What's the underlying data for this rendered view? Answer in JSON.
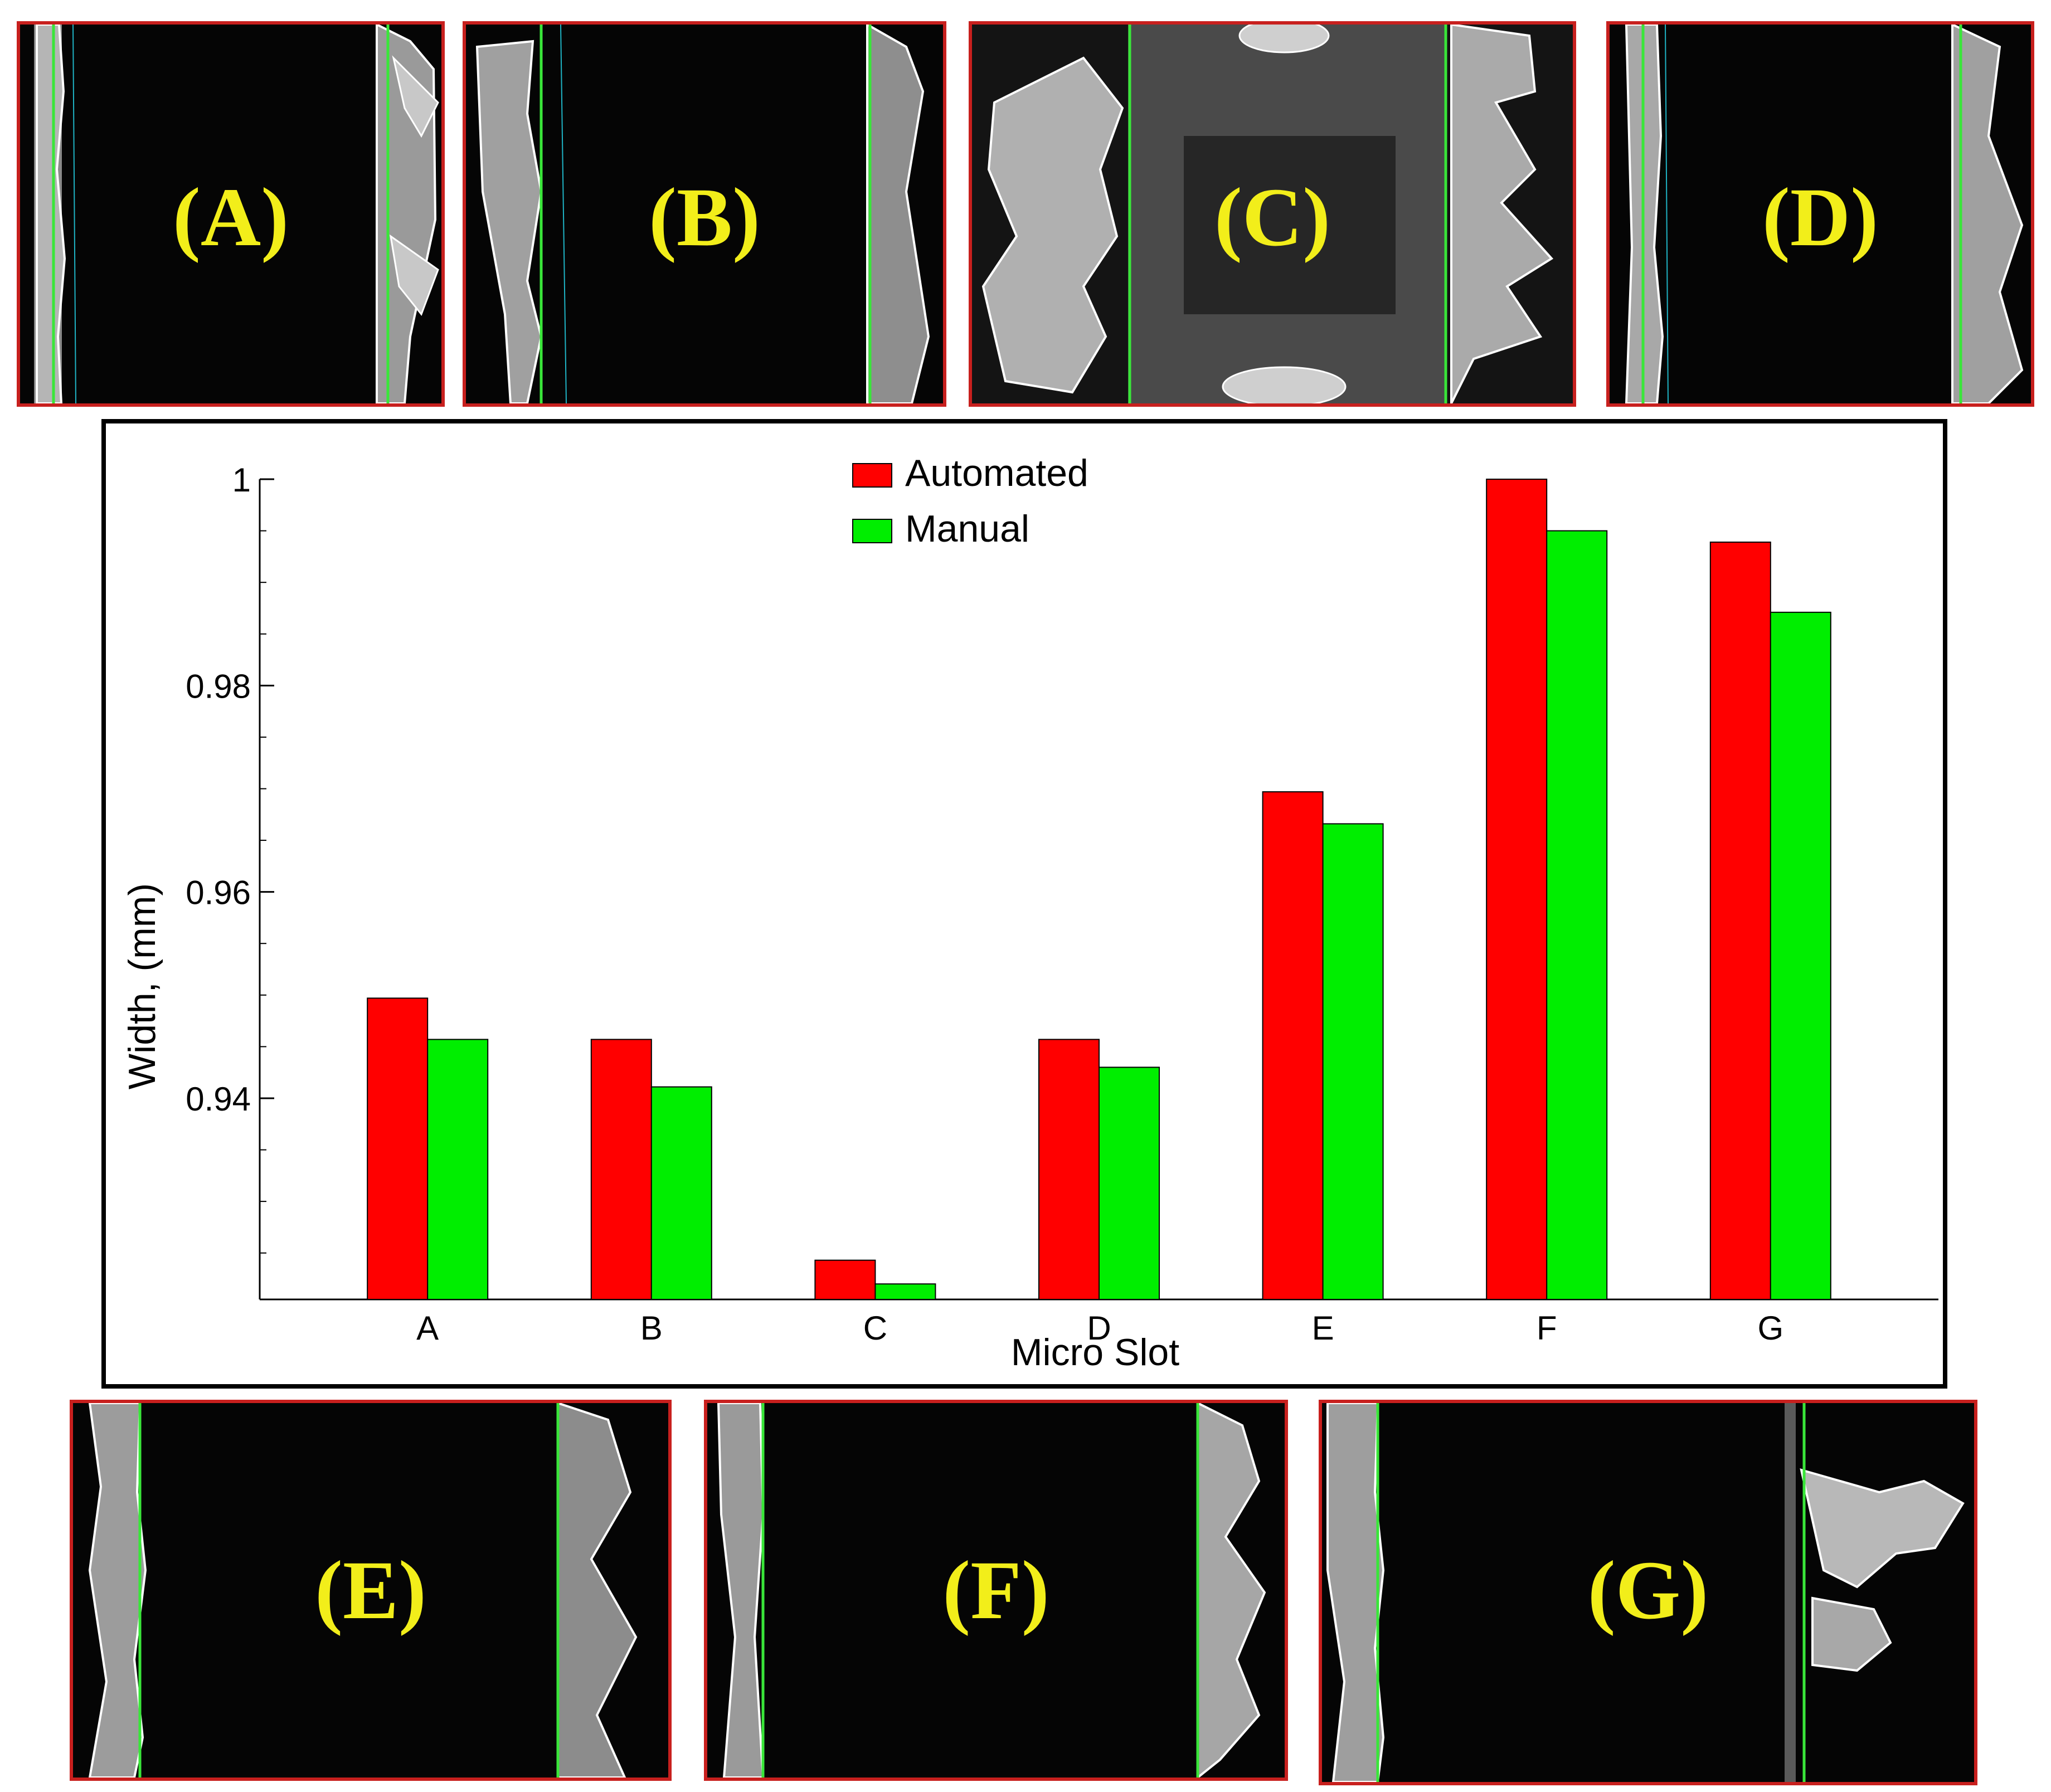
{
  "panels": [
    {
      "id": "A",
      "label": "(A)",
      "bg": "#050505"
    },
    {
      "id": "B",
      "label": "(B)",
      "bg": "#050505"
    },
    {
      "id": "C",
      "label": "(C)",
      "bg": "#3a3a3a"
    },
    {
      "id": "D",
      "label": "(D)",
      "bg": "#050505"
    },
    {
      "id": "E",
      "label": "(E)",
      "bg": "#050505"
    },
    {
      "id": "F",
      "label": "(F)",
      "bg": "#050505"
    },
    {
      "id": "G",
      "label": "(G)",
      "bg": "#050505"
    }
  ],
  "colors": {
    "automated": "#ff0000",
    "manual": "#00ee00",
    "panel_border": "#c8201e",
    "panel_label": "#f2ee1a",
    "edge_line": "#39e639"
  },
  "chart_data": {
    "type": "bar",
    "categories": [
      "A",
      "B",
      "C",
      "D",
      "E",
      "F",
      "G"
    ],
    "series": [
      {
        "name": "Automated",
        "color": "#ff0000",
        "values": [
          0.9497,
          0.9457,
          0.9243,
          0.9457,
          0.9697,
          1.0,
          0.9939
        ]
      },
      {
        "name": "Manual",
        "color": "#00ee00",
        "values": [
          0.9457,
          0.9411,
          0.922,
          0.943,
          0.9666,
          0.995,
          0.9871
        ]
      }
    ],
    "xlabel": "Micro Slot",
    "ylabel": "Width, (mm)",
    "ylim": [
      0.9205,
      1.0
    ],
    "yticks": [
      0.94,
      0.96,
      0.98,
      1.0
    ],
    "ytick_labels": [
      "0.94",
      "0.96",
      "0.98",
      "1"
    ],
    "minor_tick_step": 0.005,
    "grid": false,
    "legend_position": "top-center"
  }
}
